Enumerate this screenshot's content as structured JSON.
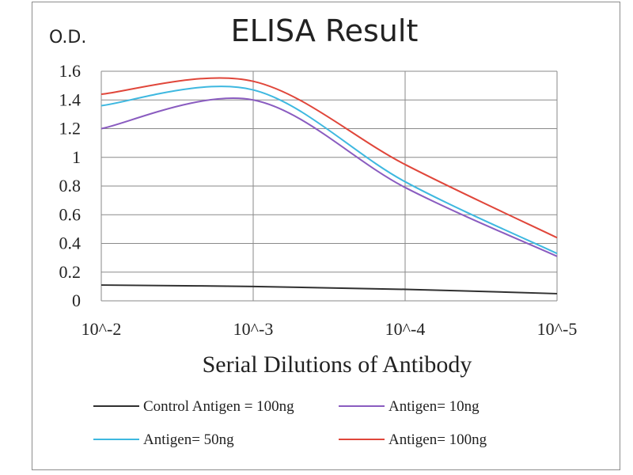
{
  "chart_data": {
    "type": "line",
    "title": "ELISA Result",
    "ylabel": "O.D.",
    "xlabel": "Serial Dilutions  of Antibody",
    "x_scale": "log",
    "x_reversed": true,
    "categories": [
      "10^-2",
      "10^-3",
      "10^-4",
      "10^-5"
    ],
    "x": [
      0.01,
      0.001,
      0.0001,
      1e-05
    ],
    "yticks": [
      "0",
      "0.2",
      "0.4",
      "0.6",
      "0.8",
      "1",
      "1.2",
      "1.4",
      "1.6"
    ],
    "ylim": [
      0,
      1.6
    ],
    "grid": true,
    "legend_position": "bottom",
    "series": [
      {
        "name": "Control Antigen = 100ng",
        "color": "#303030",
        "values": [
          0.11,
          0.1,
          0.08,
          0.05
        ]
      },
      {
        "name": "Antigen= 10ng",
        "color": "#8a5cc0",
        "values": [
          1.2,
          1.4,
          0.79,
          0.31
        ]
      },
      {
        "name": "Antigen= 50ng",
        "color": "#3eb8e0",
        "values": [
          1.36,
          1.47,
          0.83,
          0.33
        ]
      },
      {
        "name": "Antigen= 100ng",
        "color": "#e0463a",
        "values": [
          1.44,
          1.53,
          0.95,
          0.44
        ]
      }
    ]
  }
}
